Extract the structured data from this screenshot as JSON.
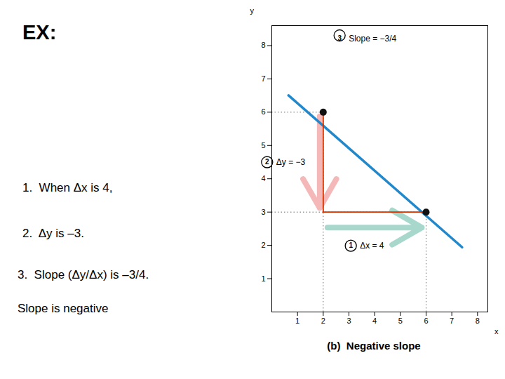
{
  "chart_data": {
    "type": "line",
    "title": "EX:",
    "notes": [
      "1.  When Δx is 4,",
      "2.  Δy is –3.",
      "3.  Slope (Δy/Δx) is –3/4.",
      "Slope is negative"
    ],
    "subtitle": "(b)  Negative slope",
    "xlabel": "x",
    "ylabel": "y",
    "xlim": [
      0,
      8.4
    ],
    "ylim": [
      0,
      8.6
    ],
    "xticks": [
      1,
      2,
      3,
      4,
      5,
      6,
      7,
      8
    ],
    "yticks": [
      1,
      2,
      3,
      4,
      5,
      6,
      7,
      8
    ],
    "series": [
      {
        "type": "line",
        "color": "#2288cc",
        "line_style": "solid",
        "x": [
          0.65,
          7.4
        ],
        "values": [
          6.506,
          1.944
        ]
      },
      {
        "type": "scatter",
        "color": "#111111",
        "marker": "circle",
        "x": [
          2,
          6
        ],
        "values": [
          6,
          3
        ]
      },
      {
        "type": "line",
        "color": "#cc3300",
        "line_style": "solid",
        "x": [
          2,
          2,
          6
        ],
        "values": [
          6,
          3,
          3
        ]
      }
    ],
    "annotations": [
      {
        "number": 1,
        "text": "Δx = 4",
        "color": "#a8d8cc"
      },
      {
        "number": 2,
        "text": "Δy = −3",
        "color": "#f5b8b8"
      },
      {
        "number": 3,
        "text": "Slope = −3/4"
      }
    ]
  }
}
